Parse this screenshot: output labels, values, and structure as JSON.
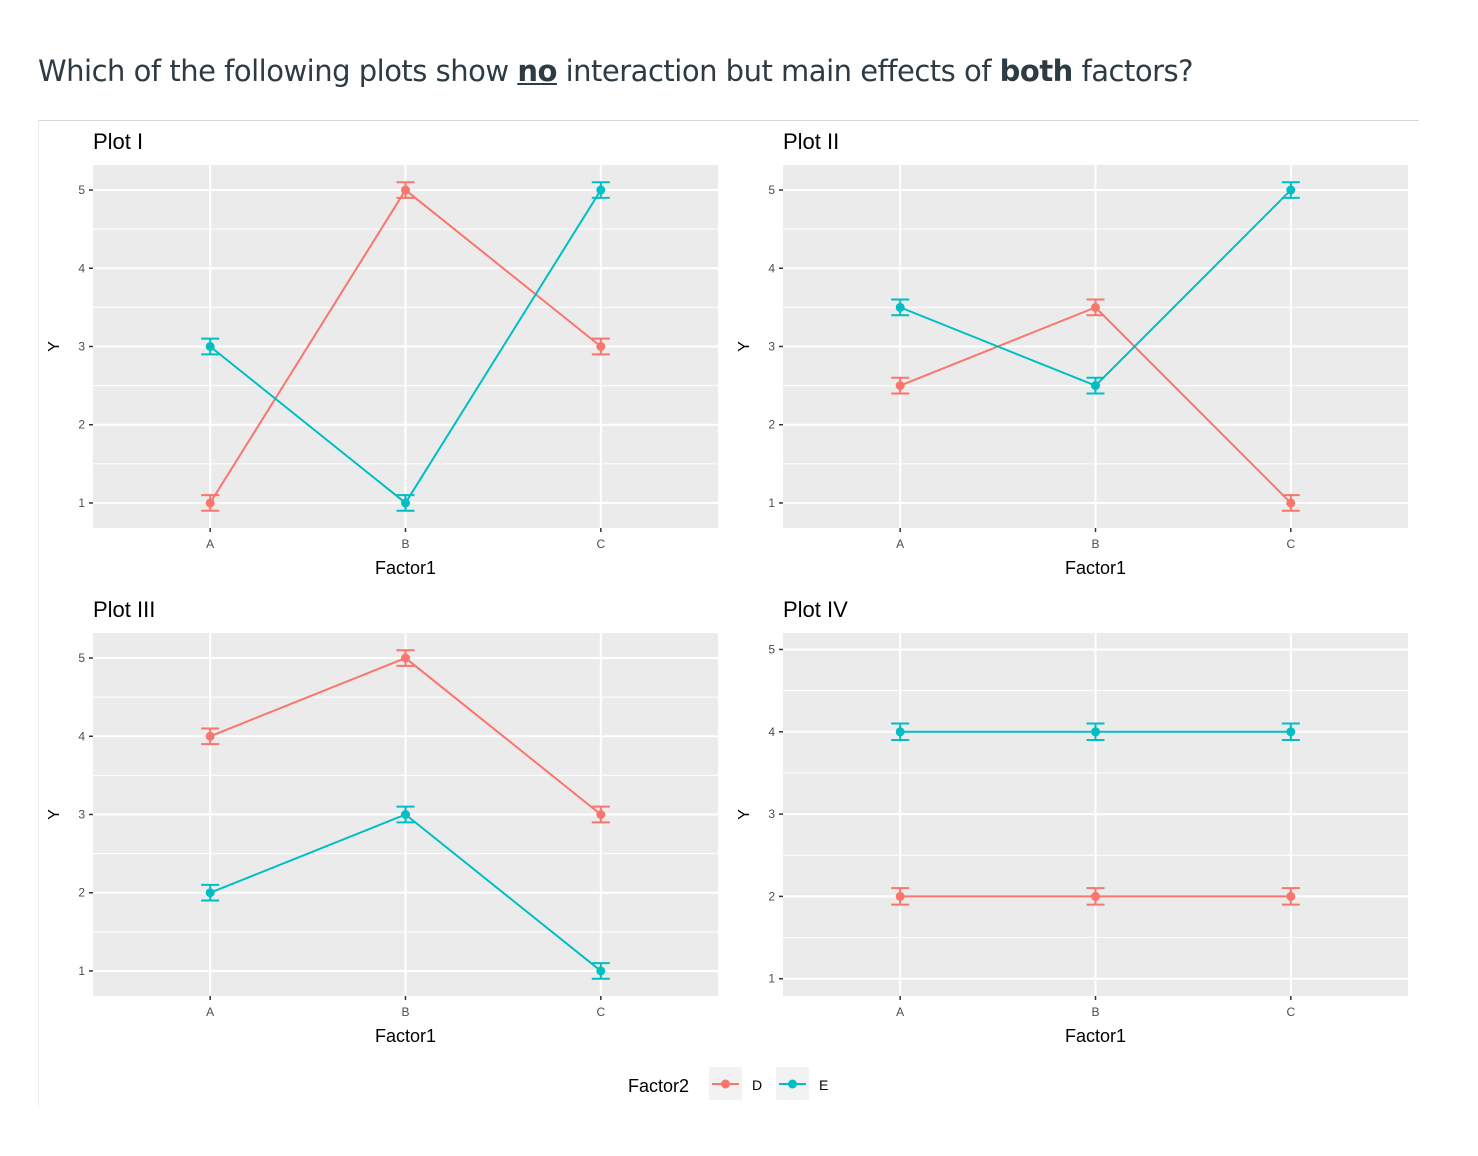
{
  "question": {
    "part1": "Which of the following plots show ",
    "no": "no",
    "part2": " interaction but main effects of ",
    "both": "both",
    "part3": " factors?"
  },
  "colors": {
    "D": "#F8766D",
    "E": "#00BFC4",
    "panel": "#EBEBEB",
    "grid": "#FFFFFF"
  },
  "legend": {
    "title": "Factor2",
    "items": [
      "D",
      "E"
    ],
    "placement": "bottom"
  },
  "chart_data": [
    {
      "type": "line",
      "title": "Plot I",
      "xlabel": "Factor1",
      "ylabel": "Y",
      "categories": [
        "A",
        "B",
        "C"
      ],
      "yticks": [
        1,
        2,
        3,
        4,
        5
      ],
      "ylim": [
        0.68,
        5.32
      ],
      "error": 0.1,
      "series": [
        {
          "name": "D",
          "values": [
            1,
            5,
            3
          ]
        },
        {
          "name": "E",
          "values": [
            3,
            1,
            5
          ]
        }
      ]
    },
    {
      "type": "line",
      "title": "Plot II",
      "xlabel": "Factor1",
      "ylabel": "Y",
      "categories": [
        "A",
        "B",
        "C"
      ],
      "yticks": [
        1,
        2,
        3,
        4,
        5
      ],
      "ylim": [
        0.68,
        5.32
      ],
      "error": 0.1,
      "series": [
        {
          "name": "D",
          "values": [
            2.5,
            3.5,
            1
          ]
        },
        {
          "name": "E",
          "values": [
            3.5,
            2.5,
            5
          ]
        }
      ]
    },
    {
      "type": "line",
      "title": "Plot III",
      "xlabel": "Factor1",
      "ylabel": "Y",
      "categories": [
        "A",
        "B",
        "C"
      ],
      "yticks": [
        1,
        2,
        3,
        4,
        5
      ],
      "ylim": [
        0.68,
        5.32
      ],
      "error": 0.1,
      "series": [
        {
          "name": "D",
          "values": [
            4,
            5,
            3
          ]
        },
        {
          "name": "E",
          "values": [
            2,
            3,
            1
          ]
        }
      ]
    },
    {
      "type": "line",
      "title": "Plot IV",
      "xlabel": "Factor1",
      "ylabel": "Y",
      "categories": [
        "A",
        "B",
        "C"
      ],
      "yticks": [
        1,
        2,
        3,
        4,
        5
      ],
      "ylim": [
        0.79,
        5.2
      ],
      "error": 0.1,
      "series": [
        {
          "name": "D",
          "values": [
            2,
            2,
            2
          ]
        },
        {
          "name": "E",
          "values": [
            4,
            4,
            4
          ]
        }
      ]
    }
  ]
}
